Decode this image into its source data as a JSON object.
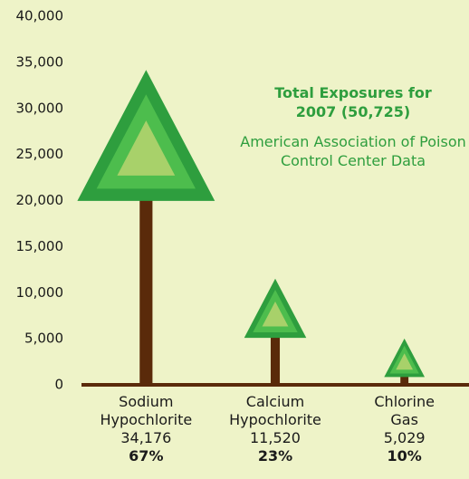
{
  "chart_data": {
    "type": "tree-pictograph",
    "title": "Total Exposures for 2007 (50,725)",
    "subtitle": "American Association of Poison Control Center Data",
    "categories": [
      "Sodium Hypochlorite",
      "Calcium Hypochlorite",
      "Chlorine Gas"
    ],
    "values": [
      34176,
      11520,
      5029
    ],
    "value_labels": [
      "34,176",
      "11,520",
      "5,029"
    ],
    "shares": [
      67,
      23,
      10
    ],
    "share_labels": [
      "67%",
      "23%",
      "10%"
    ],
    "colors": {
      "outer": "#2e9e3e",
      "middle": "#4dbd4d",
      "inner": "#a8d16a",
      "trunk": "#5a2a0a"
    },
    "ylim": [
      0,
      40000
    ],
    "yticks": [
      0,
      {
        "value": 5000,
        "label": "5,000"
      },
      {
        "value": 10000,
        "label": "10,000"
      },
      {
        "value": 15000,
        "label": "15,000"
      },
      {
        "value": 20000,
        "label": "20,000"
      },
      {
        "value": 25000,
        "label": "25,000"
      },
      {
        "value": 30000,
        "label": "30,000"
      },
      {
        "value": 35000,
        "label": "35,000"
      },
      {
        "value": 40000,
        "label": "40,000"
      }
    ]
  }
}
